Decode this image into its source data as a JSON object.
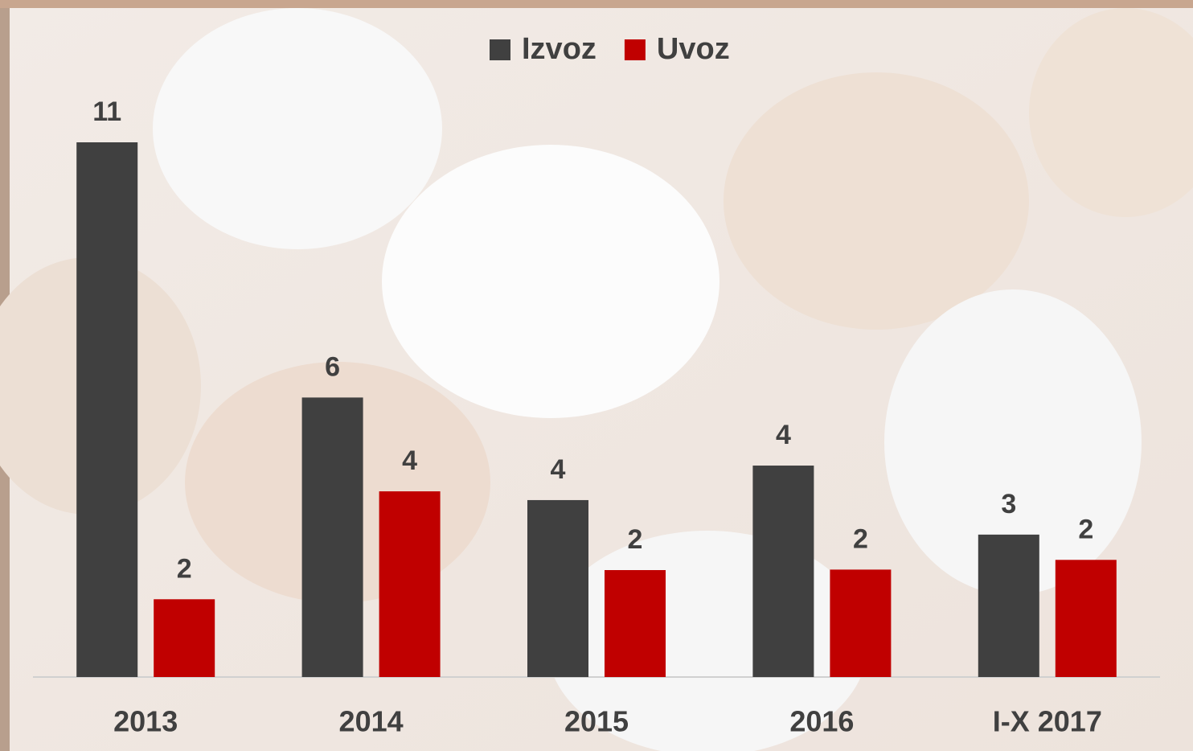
{
  "chart_data": {
    "type": "bar",
    "categories": [
      "2013",
      "2014",
      "2015",
      "2016",
      "I-X 2017"
    ],
    "series": [
      {
        "name": "Izvoz",
        "color": "#404040",
        "values": [
          11.0,
          5.75,
          3.64,
          4.35,
          2.93
        ],
        "value_labels": [
          "11",
          "6",
          "4",
          "4",
          "3"
        ]
      },
      {
        "name": "Uvoz",
        "color": "#c00000",
        "values": [
          1.6,
          3.82,
          2.2,
          2.21,
          2.41
        ],
        "value_labels": [
          "2",
          "4",
          "2",
          "2",
          "2"
        ]
      }
    ],
    "legend": "top"
  }
}
